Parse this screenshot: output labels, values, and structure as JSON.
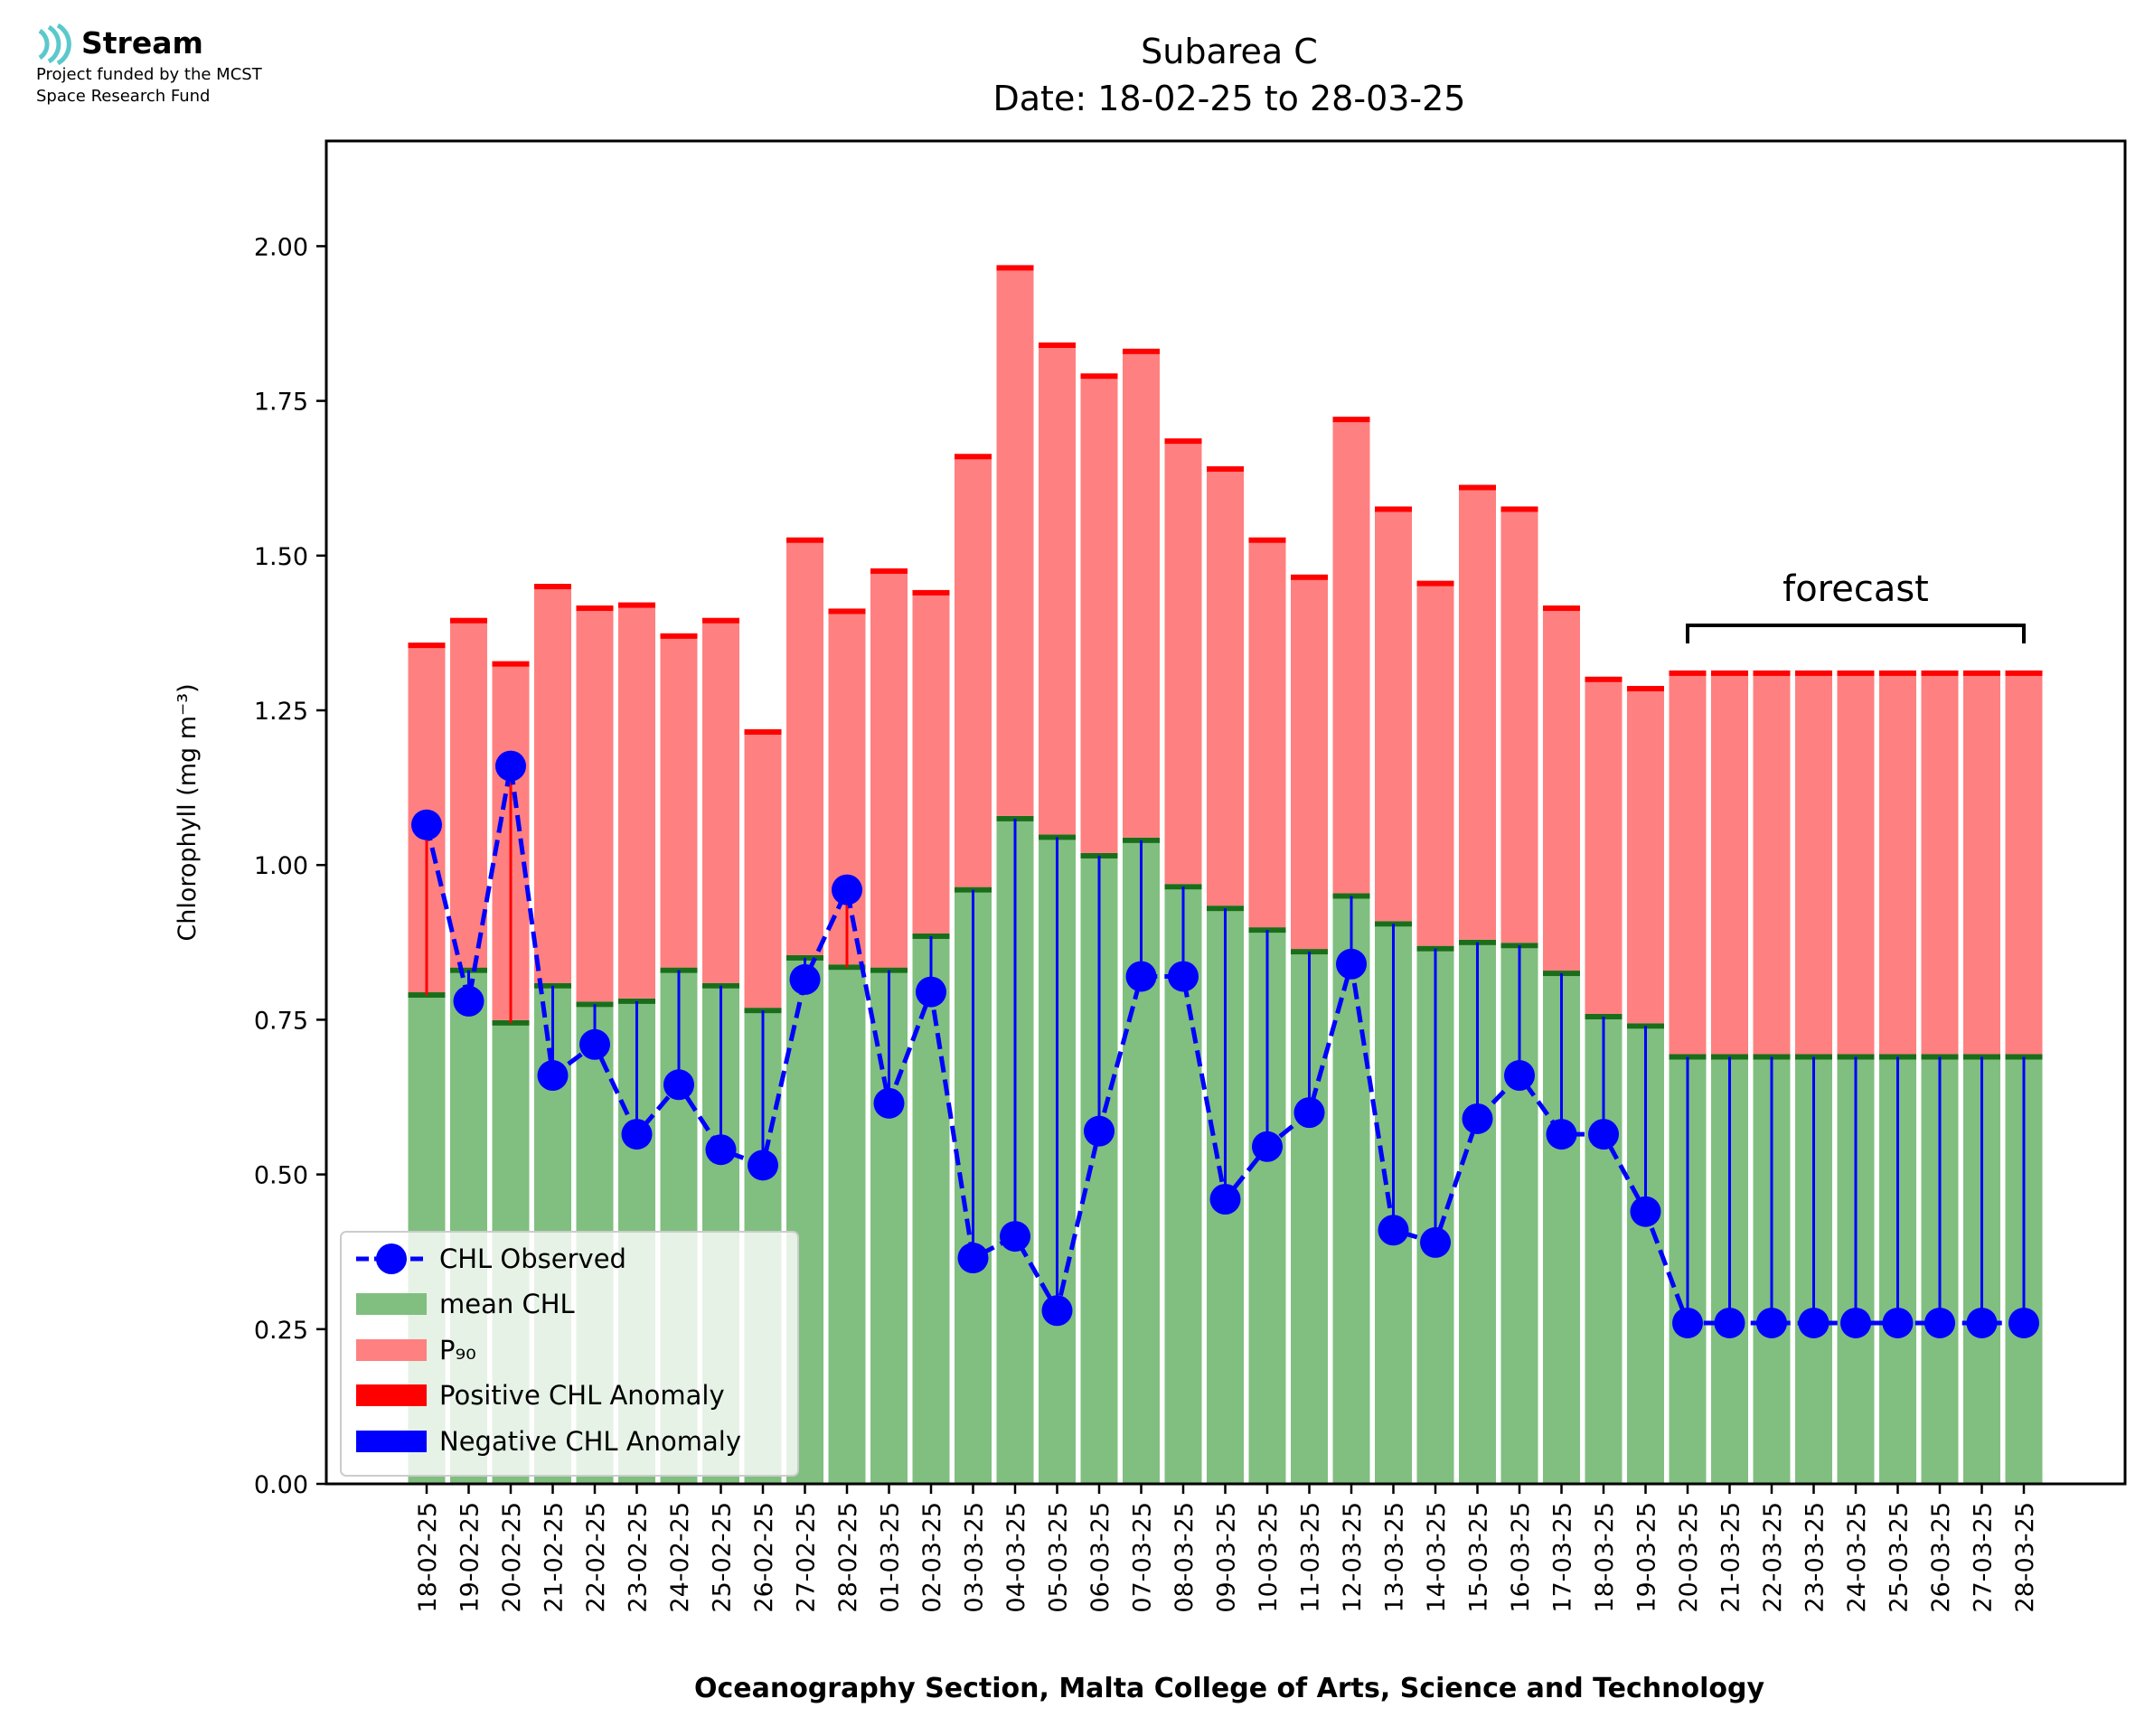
{
  "logo": {
    "name": "Stream",
    "line1": "Project funded by the MCST",
    "line2": "Space Research Fund",
    "icon": "wave-signal-icon"
  },
  "colors": {
    "mean_bar": "#80bf80",
    "mean_cap": "#1a6e1a",
    "p90_bar": "#ff8080",
    "p90_cap": "#ff0000",
    "observed": "#0000ff",
    "positive_anomaly": "#ff0000",
    "negative_anomaly": "#0000ff",
    "logo_icon": "#5bc8cc"
  },
  "chart_data": {
    "type": "bar",
    "title": "Subarea C",
    "subtitle": "Date: 18-02-25 to 28-03-25",
    "xlabel": "Oceanography Section, Malta College of Arts, Science and Technology",
    "ylabel": "Chlorophyll (mg m⁻³)",
    "ylim": [
      0,
      2.17
    ],
    "yticks": [
      "0.00",
      "0.25",
      "0.50",
      "0.75",
      "1.00",
      "1.25",
      "1.50",
      "1.75",
      "2.00"
    ],
    "ytick_values": [
      0,
      0.25,
      0.5,
      0.75,
      1.0,
      1.25,
      1.5,
      1.75,
      2.0
    ],
    "grid": false,
    "legend_position": "lower-left",
    "categories": [
      "18-02-25",
      "19-02-25",
      "20-02-25",
      "21-02-25",
      "22-02-25",
      "23-02-25",
      "24-02-25",
      "25-02-25",
      "26-02-25",
      "27-02-25",
      "28-02-25",
      "01-03-25",
      "02-03-25",
      "03-03-25",
      "04-03-25",
      "05-03-25",
      "06-03-25",
      "07-03-25",
      "08-03-25",
      "09-03-25",
      "10-03-25",
      "11-03-25",
      "12-03-25",
      "13-03-25",
      "14-03-25",
      "15-03-25",
      "16-03-25",
      "17-03-25",
      "18-03-25",
      "19-03-25",
      "20-03-25",
      "21-03-25",
      "22-03-25",
      "23-03-25",
      "24-03-25",
      "25-03-25",
      "26-03-25",
      "27-03-25",
      "28-03-25"
    ],
    "series": [
      {
        "name": "CHL Observed",
        "kind": "line-markers",
        "values": [
          1.065,
          0.78,
          1.16,
          0.66,
          0.71,
          0.565,
          0.645,
          0.54,
          0.515,
          0.815,
          0.96,
          0.615,
          0.795,
          0.365,
          0.4,
          0.28,
          0.57,
          0.82,
          0.82,
          0.46,
          0.545,
          0.6,
          0.84,
          0.41,
          0.39,
          0.59,
          0.66,
          0.565,
          0.565,
          0.44,
          0.26,
          0.26,
          0.26,
          0.26,
          0.26,
          0.26,
          0.26,
          0.26,
          0.26
        ]
      },
      {
        "name": "mean CHL",
        "kind": "bar",
        "values": [
          0.79,
          0.83,
          0.745,
          0.805,
          0.775,
          0.78,
          0.83,
          0.805,
          0.765,
          0.85,
          0.835,
          0.83,
          0.885,
          0.96,
          1.075,
          1.045,
          1.015,
          1.04,
          0.965,
          0.93,
          0.895,
          0.86,
          0.95,
          0.905,
          0.865,
          0.875,
          0.87,
          0.825,
          0.755,
          0.74,
          0.69,
          0.69,
          0.69,
          0.69,
          0.69,
          0.69,
          0.69,
          0.69,
          0.69
        ]
      },
      {
        "name": "P₉₀",
        "kind": "bar",
        "values": [
          1.355,
          1.395,
          1.325,
          1.45,
          1.415,
          1.42,
          1.37,
          1.395,
          1.215,
          1.525,
          1.41,
          1.475,
          1.44,
          1.66,
          1.965,
          1.84,
          1.79,
          1.83,
          1.685,
          1.64,
          1.525,
          1.465,
          1.72,
          1.575,
          1.455,
          1.61,
          1.575,
          1.415,
          1.3,
          1.285,
          1.31,
          1.31,
          1.31,
          1.31,
          1.31,
          1.31,
          1.31,
          1.31,
          1.31
        ]
      },
      {
        "name": "Positive CHL Anomaly",
        "kind": "stem"
      },
      {
        "name": "Negative CHL Anomaly",
        "kind": "stem"
      }
    ],
    "annotation": {
      "text": "forecast",
      "from": "20-03-25",
      "to": "28-03-25"
    },
    "legend": [
      "CHL Observed",
      "mean CHL",
      "P₉₀",
      "Positive CHL Anomaly",
      "Negative CHL Anomaly"
    ]
  }
}
